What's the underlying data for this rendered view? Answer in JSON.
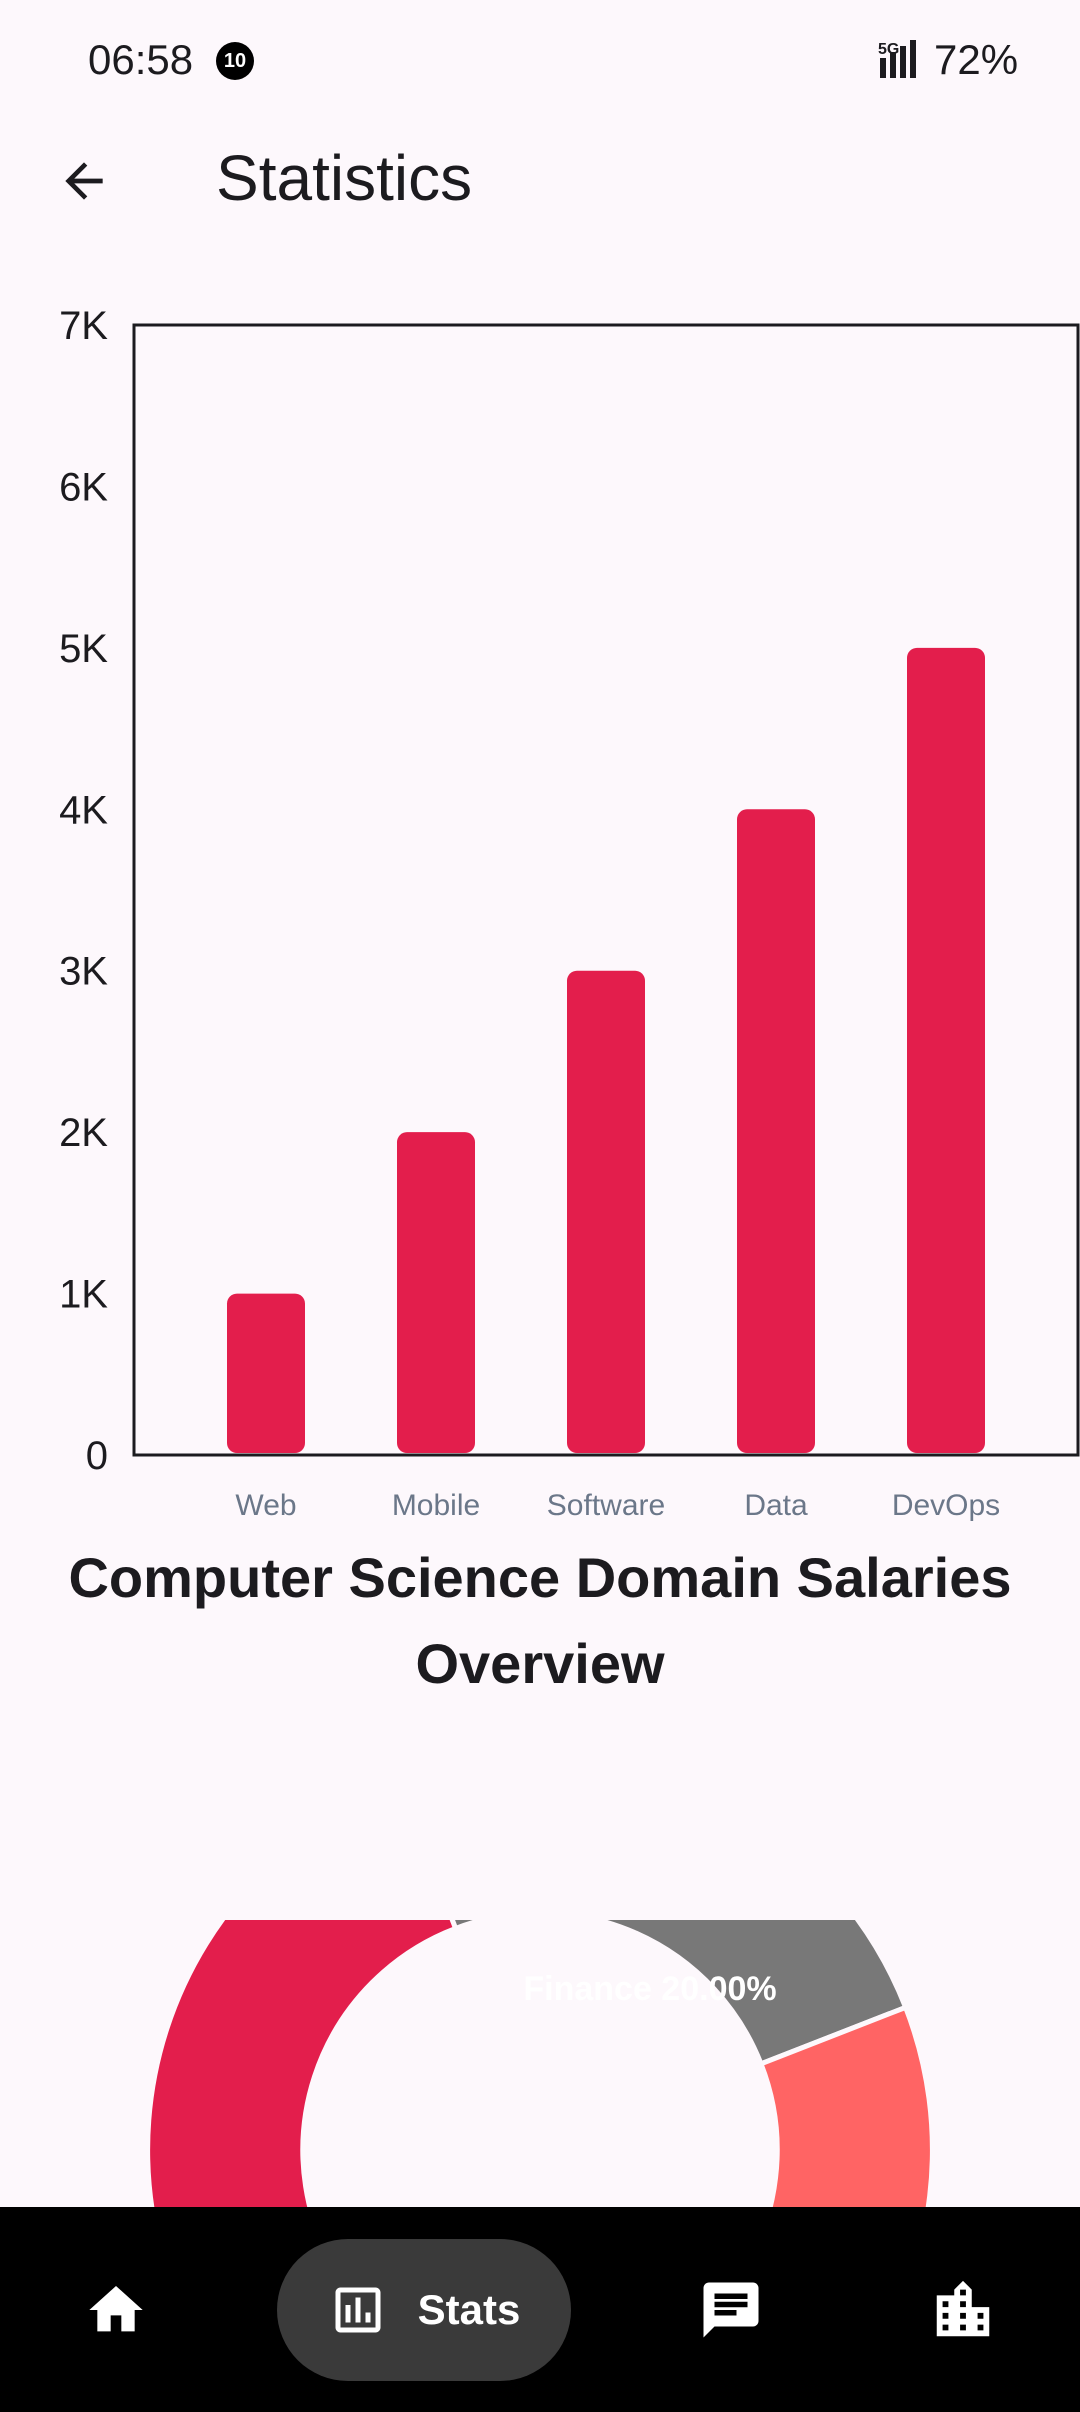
{
  "status": {
    "time": "06:58",
    "notification_count": "10",
    "network": "5G",
    "battery": "72%"
  },
  "app_bar": {
    "title": "Statistics"
  },
  "chart_data": {
    "type": "bar",
    "categories": [
      "Web",
      "Mobile",
      "Software",
      "Data",
      "DevOps"
    ],
    "values": [
      1000,
      2000,
      3000,
      4000,
      5000
    ],
    "ylim": [
      0,
      7000
    ],
    "yticks": [
      "0",
      "1K",
      "2K",
      "3K",
      "4K",
      "5K",
      "6K",
      "7K"
    ],
    "color": "#e31e4c",
    "title": "Computer Science Domain Salaries Overview"
  },
  "pie": {
    "visible_label": "Finance 20.00%",
    "segment_colors": [
      "#e31e4c",
      "#787878",
      "#ff6464"
    ]
  },
  "bottom_nav": {
    "items": [
      {
        "icon": "home-icon"
      },
      {
        "icon": "stats-icon",
        "label": "Stats",
        "active": true
      },
      {
        "icon": "chat-icon"
      },
      {
        "icon": "companies-icon"
      }
    ]
  }
}
